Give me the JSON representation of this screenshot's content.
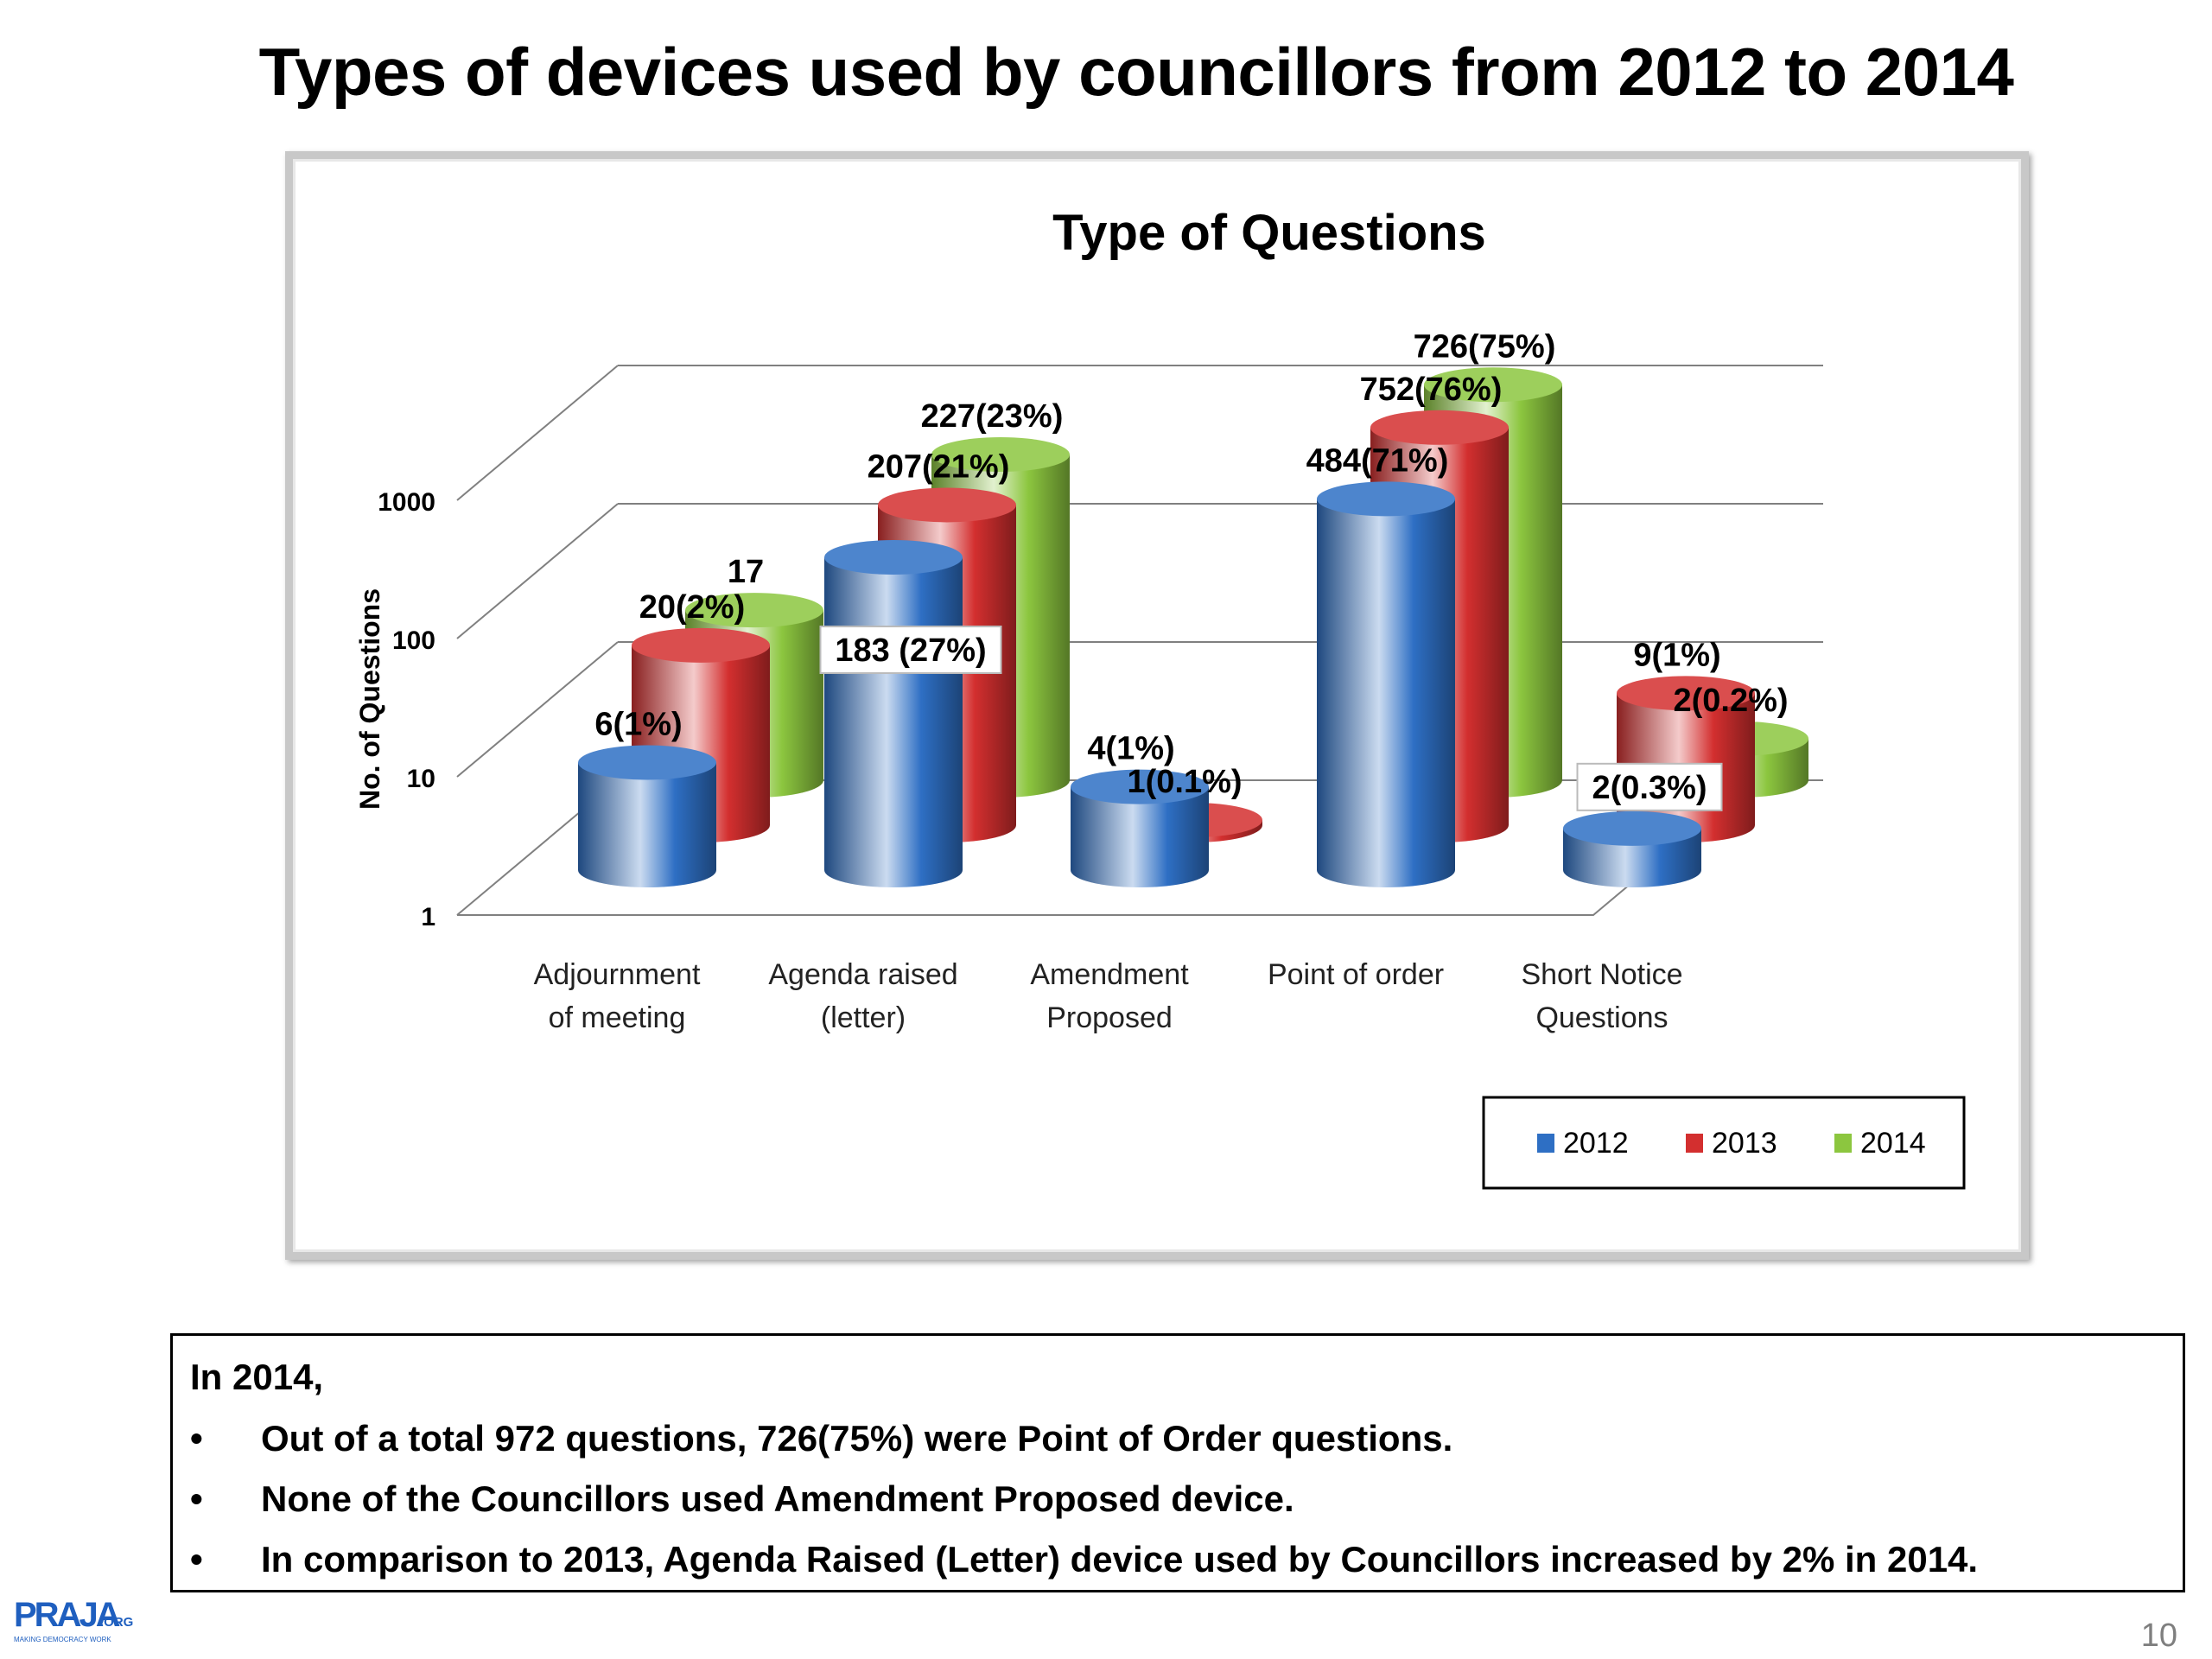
{
  "slide": {
    "title": "Types of devices used by councillors from 2012 to 2014",
    "page_number": "10",
    "logo_text": "PRAJA",
    "logo_suffix": ".ORG",
    "logo_tagline": "MAKING DEMOCRACY WORK"
  },
  "notes": {
    "heading": "In 2014,",
    "items": [
      "Out of a total 972 questions, 726(75%) were Point of Order questions.",
      "None of the Councillors used Amendment Proposed device.",
      "In comparison to 2013, Agenda Raised (Letter) device used by Councillors increased by 2% in 2014."
    ]
  },
  "chart_data": {
    "type": "bar",
    "title": "Type of Questions",
    "xlabel": "",
    "ylabel": "No. of Questions",
    "scale": "log",
    "ylim": [
      1,
      1000
    ],
    "yticks": [
      "1",
      "10",
      "100",
      "1000"
    ],
    "categories": [
      [
        "Adjournment",
        "of meeting"
      ],
      [
        "Agenda raised",
        "(letter)"
      ],
      [
        "Amendment",
        "Proposed"
      ],
      [
        "Point of order"
      ],
      [
        "Short Notice",
        "Questions"
      ]
    ],
    "series": [
      {
        "name": "2012",
        "color": "#2e6fc4",
        "values": [
          6,
          183,
          4,
          484,
          2
        ],
        "labels": [
          "6(1%)",
          "183 (27%)",
          "4(1%)",
          "484(71%)",
          "2(0.3%)"
        ]
      },
      {
        "name": "2013",
        "color": "#d32f2f",
        "values": [
          20,
          207,
          1,
          752,
          9
        ],
        "labels": [
          "20(2%)",
          "207(21%)",
          "1(0.1%)",
          "752(76%)",
          "9(1%)"
        ]
      },
      {
        "name": "2014",
        "color": "#8cc63f",
        "values": [
          17,
          227,
          null,
          726,
          2
        ],
        "labels": [
          "17",
          "227(23%)",
          "",
          "726(75%)",
          "2(0.2%)"
        ]
      }
    ],
    "legend_position": "bottom-right",
    "grid": true
  }
}
